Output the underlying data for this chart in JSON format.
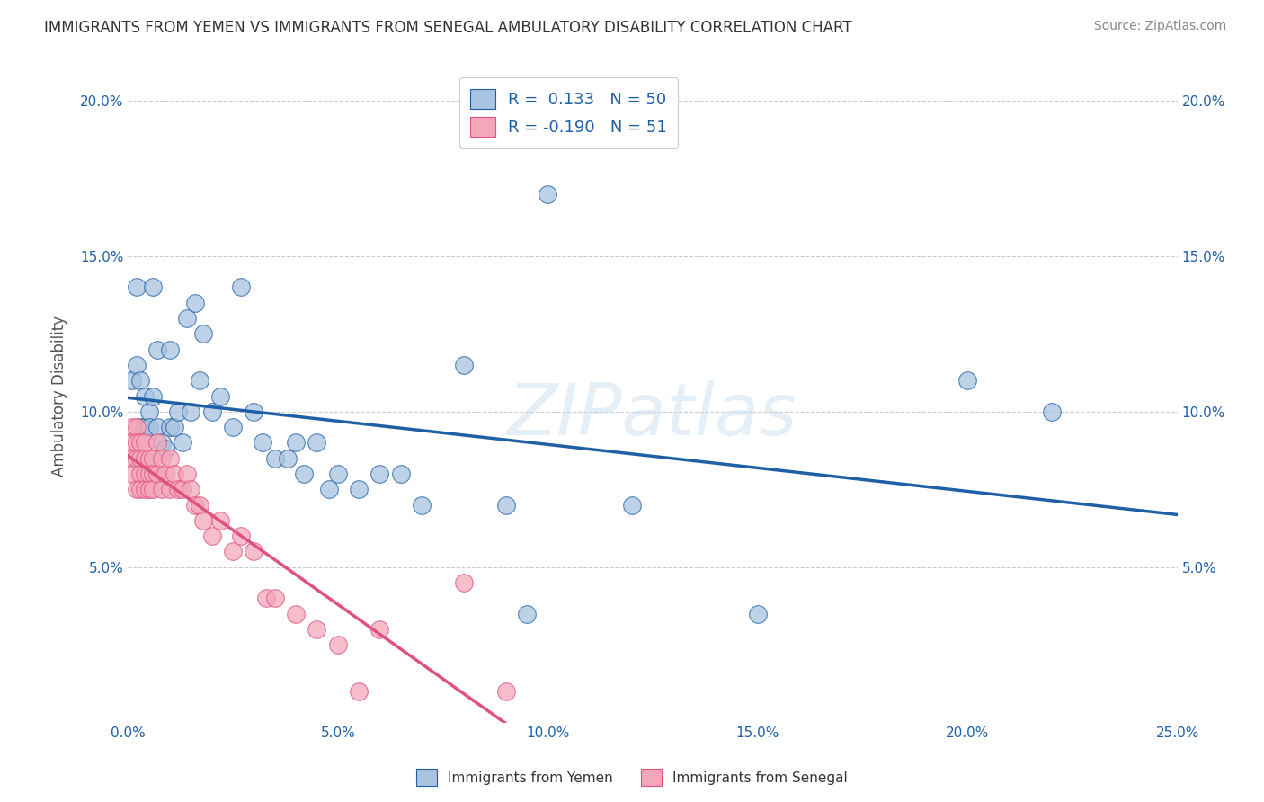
{
  "title": "IMMIGRANTS FROM YEMEN VS IMMIGRANTS FROM SENEGAL AMBULATORY DISABILITY CORRELATION CHART",
  "source": "Source: ZipAtlas.com",
  "ylabel": "Ambulatory Disability",
  "xlabel": "",
  "xlim": [
    0.0,
    0.25
  ],
  "ylim": [
    0.0,
    0.21
  ],
  "yticks": [
    0.05,
    0.1,
    0.15,
    0.2
  ],
  "xticks": [
    0.0,
    0.05,
    0.1,
    0.15,
    0.2,
    0.25
  ],
  "xtick_labels": [
    "0.0%",
    "5.0%",
    "10.0%",
    "15.0%",
    "20.0%",
    "25.0%"
  ],
  "ytick_labels": [
    "5.0%",
    "10.0%",
    "15.0%",
    "20.0%"
  ],
  "color_yemen": "#a8c4e0",
  "color_senegal": "#f4a7b9",
  "line_color_yemen": "#1f5fa6",
  "line_color_senegal": "#e05080",
  "line_color_senegal_dashed": "#f4a7b9",
  "background_color": "#ffffff",
  "watermark": "ZIPatlas",
  "yemen_x": [
    0.001,
    0.002,
    0.002,
    0.003,
    0.003,
    0.004,
    0.004,
    0.005,
    0.005,
    0.006,
    0.006,
    0.007,
    0.007,
    0.008,
    0.009,
    0.01,
    0.01,
    0.011,
    0.012,
    0.013,
    0.014,
    0.015,
    0.016,
    0.017,
    0.018,
    0.02,
    0.022,
    0.025,
    0.027,
    0.03,
    0.032,
    0.035,
    0.038,
    0.04,
    0.042,
    0.045,
    0.048,
    0.05,
    0.055,
    0.06,
    0.065,
    0.07,
    0.08,
    0.09,
    0.095,
    0.1,
    0.12,
    0.15,
    0.2,
    0.22
  ],
  "yemen_y": [
    0.11,
    0.115,
    0.14,
    0.095,
    0.11,
    0.095,
    0.105,
    0.1,
    0.095,
    0.14,
    0.105,
    0.12,
    0.095,
    0.09,
    0.088,
    0.095,
    0.12,
    0.095,
    0.1,
    0.09,
    0.13,
    0.1,
    0.135,
    0.11,
    0.125,
    0.1,
    0.105,
    0.095,
    0.14,
    0.1,
    0.09,
    0.085,
    0.085,
    0.09,
    0.08,
    0.09,
    0.075,
    0.08,
    0.075,
    0.08,
    0.08,
    0.07,
    0.115,
    0.07,
    0.035,
    0.17,
    0.07,
    0.035,
    0.11,
    0.1
  ],
  "senegal_x": [
    0.001,
    0.001,
    0.001,
    0.001,
    0.002,
    0.002,
    0.002,
    0.002,
    0.003,
    0.003,
    0.003,
    0.003,
    0.004,
    0.004,
    0.004,
    0.004,
    0.005,
    0.005,
    0.005,
    0.006,
    0.006,
    0.006,
    0.007,
    0.007,
    0.008,
    0.008,
    0.009,
    0.01,
    0.01,
    0.011,
    0.012,
    0.013,
    0.014,
    0.015,
    0.016,
    0.017,
    0.018,
    0.02,
    0.022,
    0.025,
    0.027,
    0.03,
    0.033,
    0.035,
    0.04,
    0.045,
    0.05,
    0.055,
    0.06,
    0.08,
    0.09
  ],
  "senegal_y": [
    0.095,
    0.09,
    0.085,
    0.08,
    0.095,
    0.09,
    0.085,
    0.075,
    0.09,
    0.085,
    0.08,
    0.075,
    0.09,
    0.085,
    0.08,
    0.075,
    0.085,
    0.08,
    0.075,
    0.085,
    0.08,
    0.075,
    0.09,
    0.08,
    0.085,
    0.075,
    0.08,
    0.085,
    0.075,
    0.08,
    0.075,
    0.075,
    0.08,
    0.075,
    0.07,
    0.07,
    0.065,
    0.06,
    0.065,
    0.055,
    0.06,
    0.055,
    0.04,
    0.04,
    0.035,
    0.03,
    0.025,
    0.01,
    0.03,
    0.045,
    0.01
  ]
}
